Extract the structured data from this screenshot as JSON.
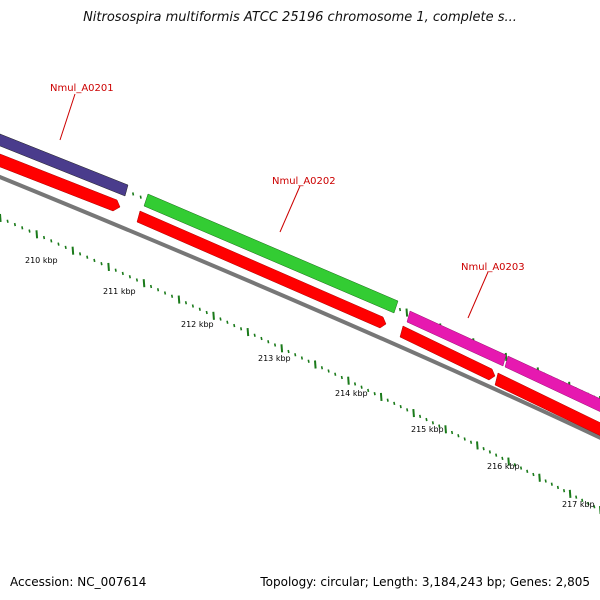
{
  "title": "Nitrosospira multiformis ATCC 25196 chromosome 1, complete s...",
  "footer": {
    "accession": "Accession: NC_007614",
    "summary": "Topology: circular; Length: 3,184,243 bp; Genes: 2,805"
  },
  "colors": {
    "backbone": "#777777",
    "cds": "#ff0000",
    "tick_major": "#1a7a1a",
    "label": "#cc0000"
  },
  "tick_labels": [
    "210 kbp",
    "211 kbp",
    "212 kbp",
    "213 kbp",
    "214 kbp",
    "215 kbp",
    "216 kbp",
    "217 kbp"
  ],
  "genes": [
    {
      "name": "Nmul_A0201",
      "color": "#4a3c8c"
    },
    {
      "name": "Nmul_A0202",
      "color": "#33cc33"
    },
    {
      "name": "Nmul_A0203",
      "color": "#e619b0"
    }
  ]
}
